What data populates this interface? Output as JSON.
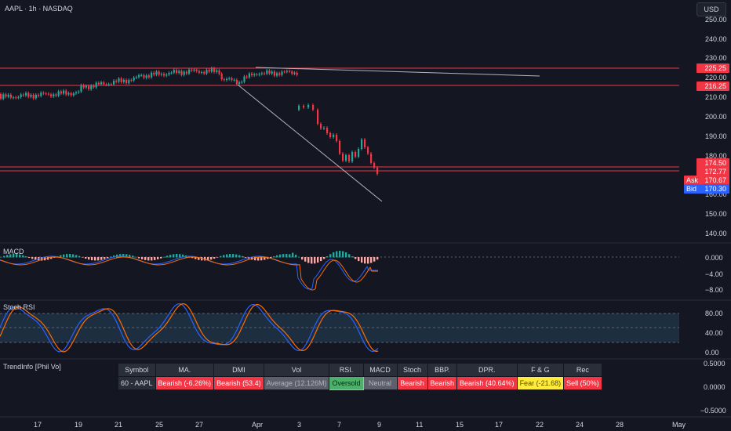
{
  "header": {
    "symbol_title": "AAPL · 1h · NASDAQ",
    "currency": "USD"
  },
  "colors": {
    "background": "#141722",
    "up": "#26a69a",
    "down": "#f23645",
    "macd": "#2962ff",
    "signal": "#ff6d00",
    "stoch_k": "#2962ff",
    "stoch_d": "#ff6d00"
  },
  "price_axis": [
    "250.00",
    "240.00",
    "230.00",
    "220.00",
    "210.00",
    "200.00",
    "190.00",
    "180.00",
    "170.00",
    "160.00",
    "150.00",
    "140.00"
  ],
  "price_tags": {
    "level_1": "225.25",
    "level_2": "216.25",
    "level_3": "174.50",
    "level_4": "172.77",
    "ask_label": "Ask",
    "ask_value": "170.67",
    "bid_label": "Bid",
    "bid_value": "170.30"
  },
  "macd_pane": {
    "title": "MACD",
    "axis": [
      "0.000",
      "−4.00",
      "−8.00"
    ]
  },
  "stoch_pane": {
    "title": "Stoch RSI",
    "axis": [
      "80.00",
      "40.00",
      "0.00"
    ]
  },
  "trendinfo_pane": {
    "title": "TrendInfo [Phil Vo]",
    "axis": [
      "0.5000",
      "0.0000",
      "−0.5000"
    ],
    "headers": [
      "Symbol",
      "MA.",
      "DMI",
      "Vol",
      "RSI.",
      "MACD",
      "Stoch",
      "BBP.",
      "DPR.",
      "F & G",
      "Rec"
    ],
    "row": [
      "60 - AAPL",
      "Bearish (-6.26%)",
      "Bearish (53.4)",
      "Average (12.126M)",
      "Oversold",
      "Neutral",
      "Bearish",
      "Bearish",
      "Bearish (40.64%)",
      "Fear (-21.68)",
      "Sell (50%)"
    ]
  },
  "time_axis": [
    "17",
    "19",
    "21",
    "25",
    "27",
    "Apr",
    "3",
    "7",
    "9",
    "11",
    "15",
    "17",
    "22",
    "24",
    "28",
    "May"
  ]
}
